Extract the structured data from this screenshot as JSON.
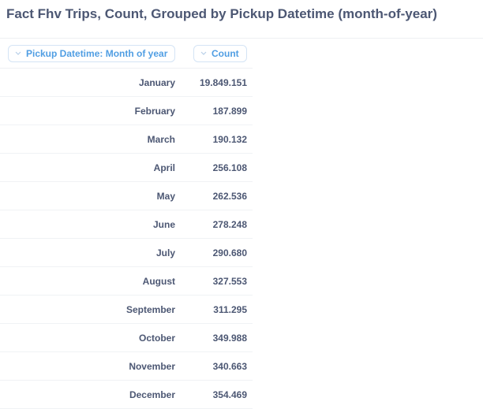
{
  "header": {
    "title": "Fact Fhv Trips, Count, Grouped by Pickup Datetime (month-of-year)"
  },
  "table": {
    "columns": [
      "Pickup Datetime: Month of year",
      "Count"
    ],
    "rows": [
      [
        "January",
        "19.849.151"
      ],
      [
        "February",
        "187.899"
      ],
      [
        "March",
        "190.132"
      ],
      [
        "April",
        "256.108"
      ],
      [
        "May",
        "262.536"
      ],
      [
        "June",
        "278.248"
      ],
      [
        "July",
        "290.680"
      ],
      [
        "August",
        "327.553"
      ],
      [
        "September",
        "311.295"
      ],
      [
        "October",
        "349.988"
      ],
      [
        "November",
        "340.663"
      ],
      [
        "December",
        "354.469"
      ]
    ]
  }
}
